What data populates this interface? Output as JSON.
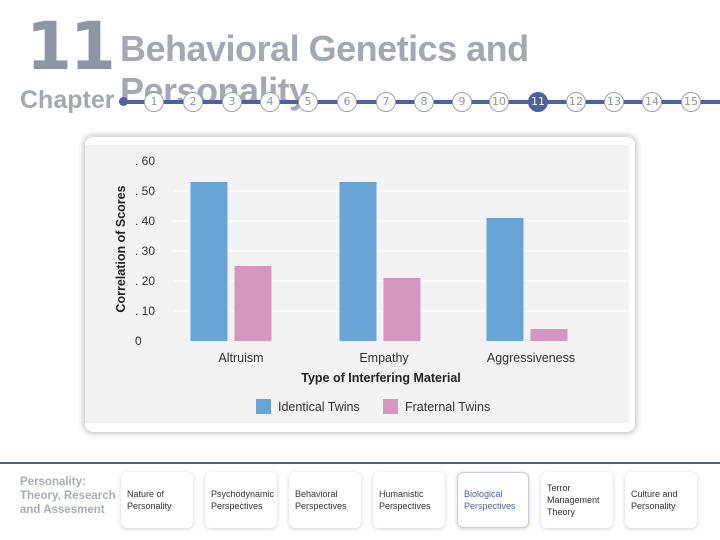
{
  "header": {
    "chapter_number": "11",
    "chapter_word": "Chapter",
    "title": "Behavioral Genetics and Personality",
    "chapter_links": [
      "1",
      "2",
      "3",
      "4",
      "5",
      "6",
      "7",
      "8",
      "9",
      "10",
      "11",
      "12",
      "13",
      "14",
      "15"
    ],
    "active_chapter": "11",
    "accent_color": "#4f5fa0"
  },
  "chart_data": {
    "type": "bar",
    "title": "",
    "xlabel": "Type of Interfering Material",
    "ylabel": "Correlation of Scores",
    "categories": [
      "Altruism",
      "Empathy",
      "Aggressiveness"
    ],
    "series": [
      {
        "name": "Identical Twins",
        "color": "#68a4d6",
        "values": [
          0.53,
          0.53,
          0.41
        ]
      },
      {
        "name": "Fraternal Twins",
        "color": "#d596bf",
        "values": [
          0.25,
          0.21,
          0.04
        ]
      }
    ],
    "y_ticks": [
      {
        "value": 0,
        "label": "0"
      },
      {
        "value": 0.1,
        "label": ". 10"
      },
      {
        "value": 0.2,
        "label": ". 20"
      },
      {
        "value": 0.3,
        "label": ". 30"
      },
      {
        "value": 0.4,
        "label": ". 40"
      },
      {
        "value": 0.5,
        "label": ". 50"
      },
      {
        "value": 0.6,
        "label": ". 60"
      }
    ],
    "ylim": [
      0,
      0.6
    ],
    "grid": true,
    "legend_position": "bottom"
  },
  "footer": {
    "book_title_lines": [
      "Personality:",
      "Theory, Research",
      "and Assesment"
    ],
    "nav_items": [
      [
        "Nature of",
        "Personality"
      ],
      [
        "Psychodynamic",
        "Perspectives"
      ],
      [
        "Behavioral",
        "Perspectives"
      ],
      [
        "Humanistic",
        "Perspectives"
      ],
      [
        "Biological",
        "Perspectives"
      ],
      [
        "Terror",
        "Management",
        "Theory"
      ],
      [
        "Culture and",
        "Personality"
      ]
    ],
    "active_index": 4
  }
}
